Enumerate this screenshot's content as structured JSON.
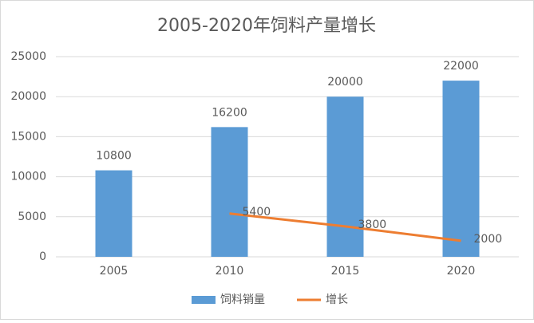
{
  "chart_data": {
    "type": "bar",
    "title": "2005-2020年饲料产量增长",
    "categories": [
      "2005",
      "2010",
      "2015",
      "2020"
    ],
    "series": [
      {
        "name": "饲料销量",
        "type": "bar",
        "color": "#5b9bd5",
        "values": [
          10800,
          16200,
          20000,
          22000
        ]
      },
      {
        "name": "增长",
        "type": "line",
        "color": "#ed7d31",
        "values": [
          null,
          5400,
          3800,
          2000
        ]
      }
    ],
    "ylim": [
      0,
      25000
    ],
    "yticks": [
      0,
      5000,
      10000,
      15000,
      20000,
      25000
    ],
    "grid": true,
    "legend": "bottom"
  }
}
